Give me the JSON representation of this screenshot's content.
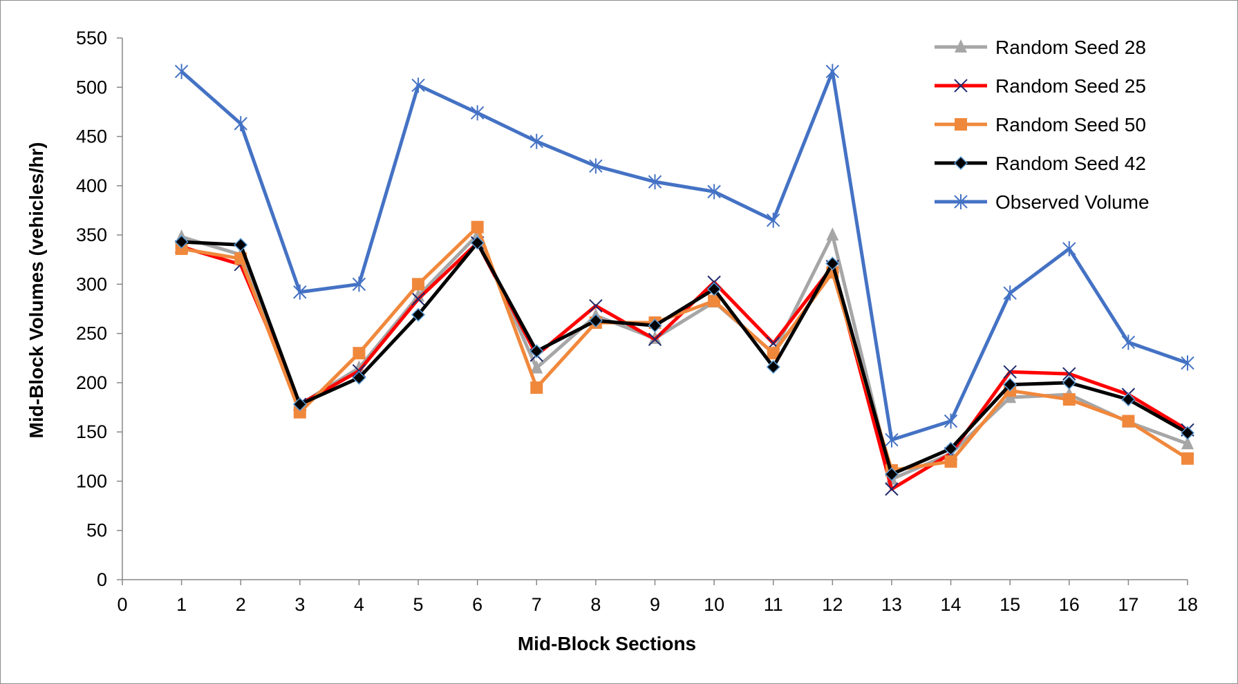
{
  "chart_data": {
    "type": "line",
    "title": "",
    "xlabel": "Mid-Block Sections",
    "ylabel": "Mid-Block Volumes (vehicles/hr)",
    "xlim": [
      0,
      18
    ],
    "ylim": [
      0,
      550
    ],
    "x_ticks": [
      "0",
      "1",
      "2",
      "3",
      "4",
      "5",
      "6",
      "7",
      "8",
      "9",
      "10",
      "11",
      "12",
      "13",
      "14",
      "15",
      "16",
      "17",
      "18"
    ],
    "y_ticks": [
      "0",
      "50",
      "100",
      "150",
      "200",
      "250",
      "300",
      "350",
      "400",
      "450",
      "500",
      "550"
    ],
    "grid": false,
    "legend_position": "top-right",
    "x": [
      1,
      2,
      3,
      4,
      5,
      6,
      7,
      8,
      9,
      10,
      11,
      12,
      13,
      14,
      15,
      16,
      17,
      18
    ],
    "series": [
      {
        "name": "Random Seed 28",
        "color": "#a6a6a6",
        "marker": "triangle",
        "values": [
          348,
          330,
          178,
          215,
          288,
          350,
          215,
          268,
          245,
          282,
          230,
          350,
          102,
          128,
          185,
          188,
          160,
          138
        ]
      },
      {
        "name": "Random Seed 25",
        "color": "#ff0000",
        "marker": "x",
        "values": [
          338,
          320,
          178,
          212,
          285,
          342,
          228,
          278,
          244,
          302,
          240,
          318,
          92,
          128,
          211,
          209,
          188,
          152
        ]
      },
      {
        "name": "Random Seed 50",
        "color": "#f0883c",
        "marker": "square",
        "values": [
          336,
          326,
          170,
          230,
          300,
          358,
          195,
          261,
          261,
          283,
          230,
          312,
          111,
          120,
          192,
          183,
          161,
          123
        ]
      },
      {
        "name": "Random Seed 42",
        "color": "#000000",
        "marker": "diamond",
        "values": [
          343,
          340,
          178,
          205,
          269,
          342,
          232,
          263,
          258,
          295,
          216,
          321,
          107,
          133,
          198,
          200,
          183,
          149
        ]
      },
      {
        "name": "Observed Volume",
        "color": "#4472c4",
        "marker": "asterisk",
        "values": [
          516,
          463,
          292,
          300,
          502,
          474,
          445,
          420,
          404,
          394,
          365,
          516,
          142,
          161,
          291,
          336,
          241,
          220
        ]
      }
    ]
  }
}
